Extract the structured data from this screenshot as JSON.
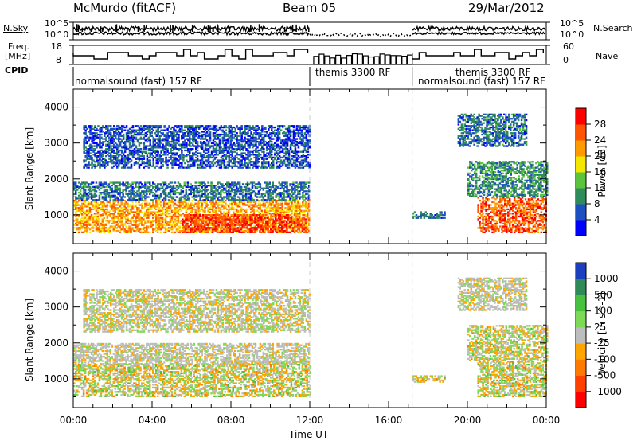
{
  "header": {
    "radar": "McMurdo (fitACF)",
    "beam": "Beam 05",
    "date": "29/Mar/2012"
  },
  "strips": {
    "nsky_label": "N.Sky",
    "nsky_ticks": [
      "10^5",
      "10^0"
    ],
    "nsearch_label": "N.Search",
    "nsearch_ticks": [
      "10^5",
      "10^0"
    ],
    "freq_label_1": "Freq.",
    "freq_label_2": "[MHz]",
    "freq_ticks": [
      "18",
      "8"
    ],
    "nave_label": "Nave",
    "nave_ticks": [
      "60",
      "0"
    ],
    "cpid_label": "CPID",
    "cpid_segments": [
      {
        "label": "normalsound (fast) 157 RF",
        "start": 0.0,
        "end": 12.0
      },
      {
        "label": "themis 3300 RF",
        "start": 12.0,
        "end": 17.2
      },
      {
        "label": "normalsound (fast) 157 RF",
        "start": 17.2,
        "end": 24.0
      }
    ]
  },
  "chart_data": [
    {
      "type": "heatmap",
      "title": "",
      "xlabel": "Time UT",
      "ylabel": "Slant Range [km]",
      "xlim": [
        0,
        24
      ],
      "ylim": [
        200,
        4500
      ],
      "x_tick_labels": [
        "00:00",
        "04:00",
        "08:00",
        "12:00",
        "16:00",
        "20:00",
        "00:00"
      ],
      "y_ticks": [
        1000,
        2000,
        3000,
        4000
      ],
      "colorbar": {
        "label": "Power [dB]",
        "ticks": [
          4,
          8,
          12,
          16,
          20,
          24,
          28
        ],
        "colors": [
          "#0000ff",
          "#1c4fbf",
          "#2f8c5a",
          "#5cc43c",
          "#f5e600",
          "#ff9a00",
          "#ff5500",
          "#ff0000"
        ]
      },
      "data_gaps": [
        [
          12.0,
          17.2
        ]
      ],
      "regions": [
        {
          "t0": 0.0,
          "t1": 12.0,
          "r0": 500,
          "r1": 1400,
          "value": 22
        },
        {
          "t0": 5.5,
          "t1": 11.8,
          "r0": 500,
          "r1": 1000,
          "value": 28
        },
        {
          "t0": 0.0,
          "t1": 12.0,
          "r0": 1400,
          "r1": 1900,
          "value": 8
        },
        {
          "t0": 0.5,
          "t1": 12.0,
          "r0": 2300,
          "r1": 3500,
          "value": 6
        },
        {
          "t0": 17.2,
          "t1": 18.8,
          "r0": 900,
          "r1": 1100,
          "value": 8
        },
        {
          "t0": 20.5,
          "t1": 24.0,
          "r0": 500,
          "r1": 1500,
          "value": 26
        },
        {
          "t0": 20.0,
          "t1": 24.0,
          "r0": 1500,
          "r1": 2500,
          "value": 10
        },
        {
          "t0": 19.5,
          "t1": 23.0,
          "r0": 2900,
          "r1": 3800,
          "value": 8
        }
      ]
    },
    {
      "type": "heatmap",
      "title": "",
      "xlabel": "Time UT",
      "ylabel": "Slant Range [km]",
      "xlim": [
        0,
        24
      ],
      "ylim": [
        200,
        4500
      ],
      "x_tick_labels": [
        "00:00",
        "04:00",
        "08:00",
        "12:00",
        "16:00",
        "20:00",
        "00:00"
      ],
      "y_ticks": [
        1000,
        2000,
        3000,
        4000
      ],
      "colorbar": {
        "label": "Velocity [m s^-1]",
        "ticks": [
          "1000",
          "500",
          "100",
          "25",
          "-25",
          "-100",
          "-500",
          "-1000"
        ],
        "colors": [
          "#1b3fbf",
          "#2e8b57",
          "#48c040",
          "#7ed957",
          "#bdbdbd",
          "#ffa500",
          "#ff7a00",
          "#ff4000",
          "#ff0000"
        ]
      },
      "data_gaps": [
        [
          12.0,
          17.2
        ]
      ],
      "regions": [
        {
          "t0": 0.0,
          "t1": 7.5,
          "r0": 500,
          "r1": 1400,
          "value": 150
        },
        {
          "t0": 7.5,
          "t1": 12.0,
          "r0": 500,
          "r1": 1500,
          "value": -150
        },
        {
          "t0": 0.0,
          "t1": 12.0,
          "r0": 1400,
          "r1": 2000,
          "value": 0
        },
        {
          "t0": 0.5,
          "t1": 12.0,
          "r0": 2300,
          "r1": 3500,
          "value": 60
        },
        {
          "t0": 17.2,
          "t1": 18.8,
          "r0": 900,
          "r1": 1100,
          "value": -150
        },
        {
          "t0": 20.5,
          "t1": 24.0,
          "r0": 500,
          "r1": 1500,
          "value": -150
        },
        {
          "t0": 20.0,
          "t1": 24.0,
          "r0": 1500,
          "r1": 2500,
          "value": -120
        },
        {
          "t0": 19.5,
          "t1": 23.0,
          "r0": 2900,
          "r1": 3800,
          "value": 0
        }
      ]
    }
  ]
}
